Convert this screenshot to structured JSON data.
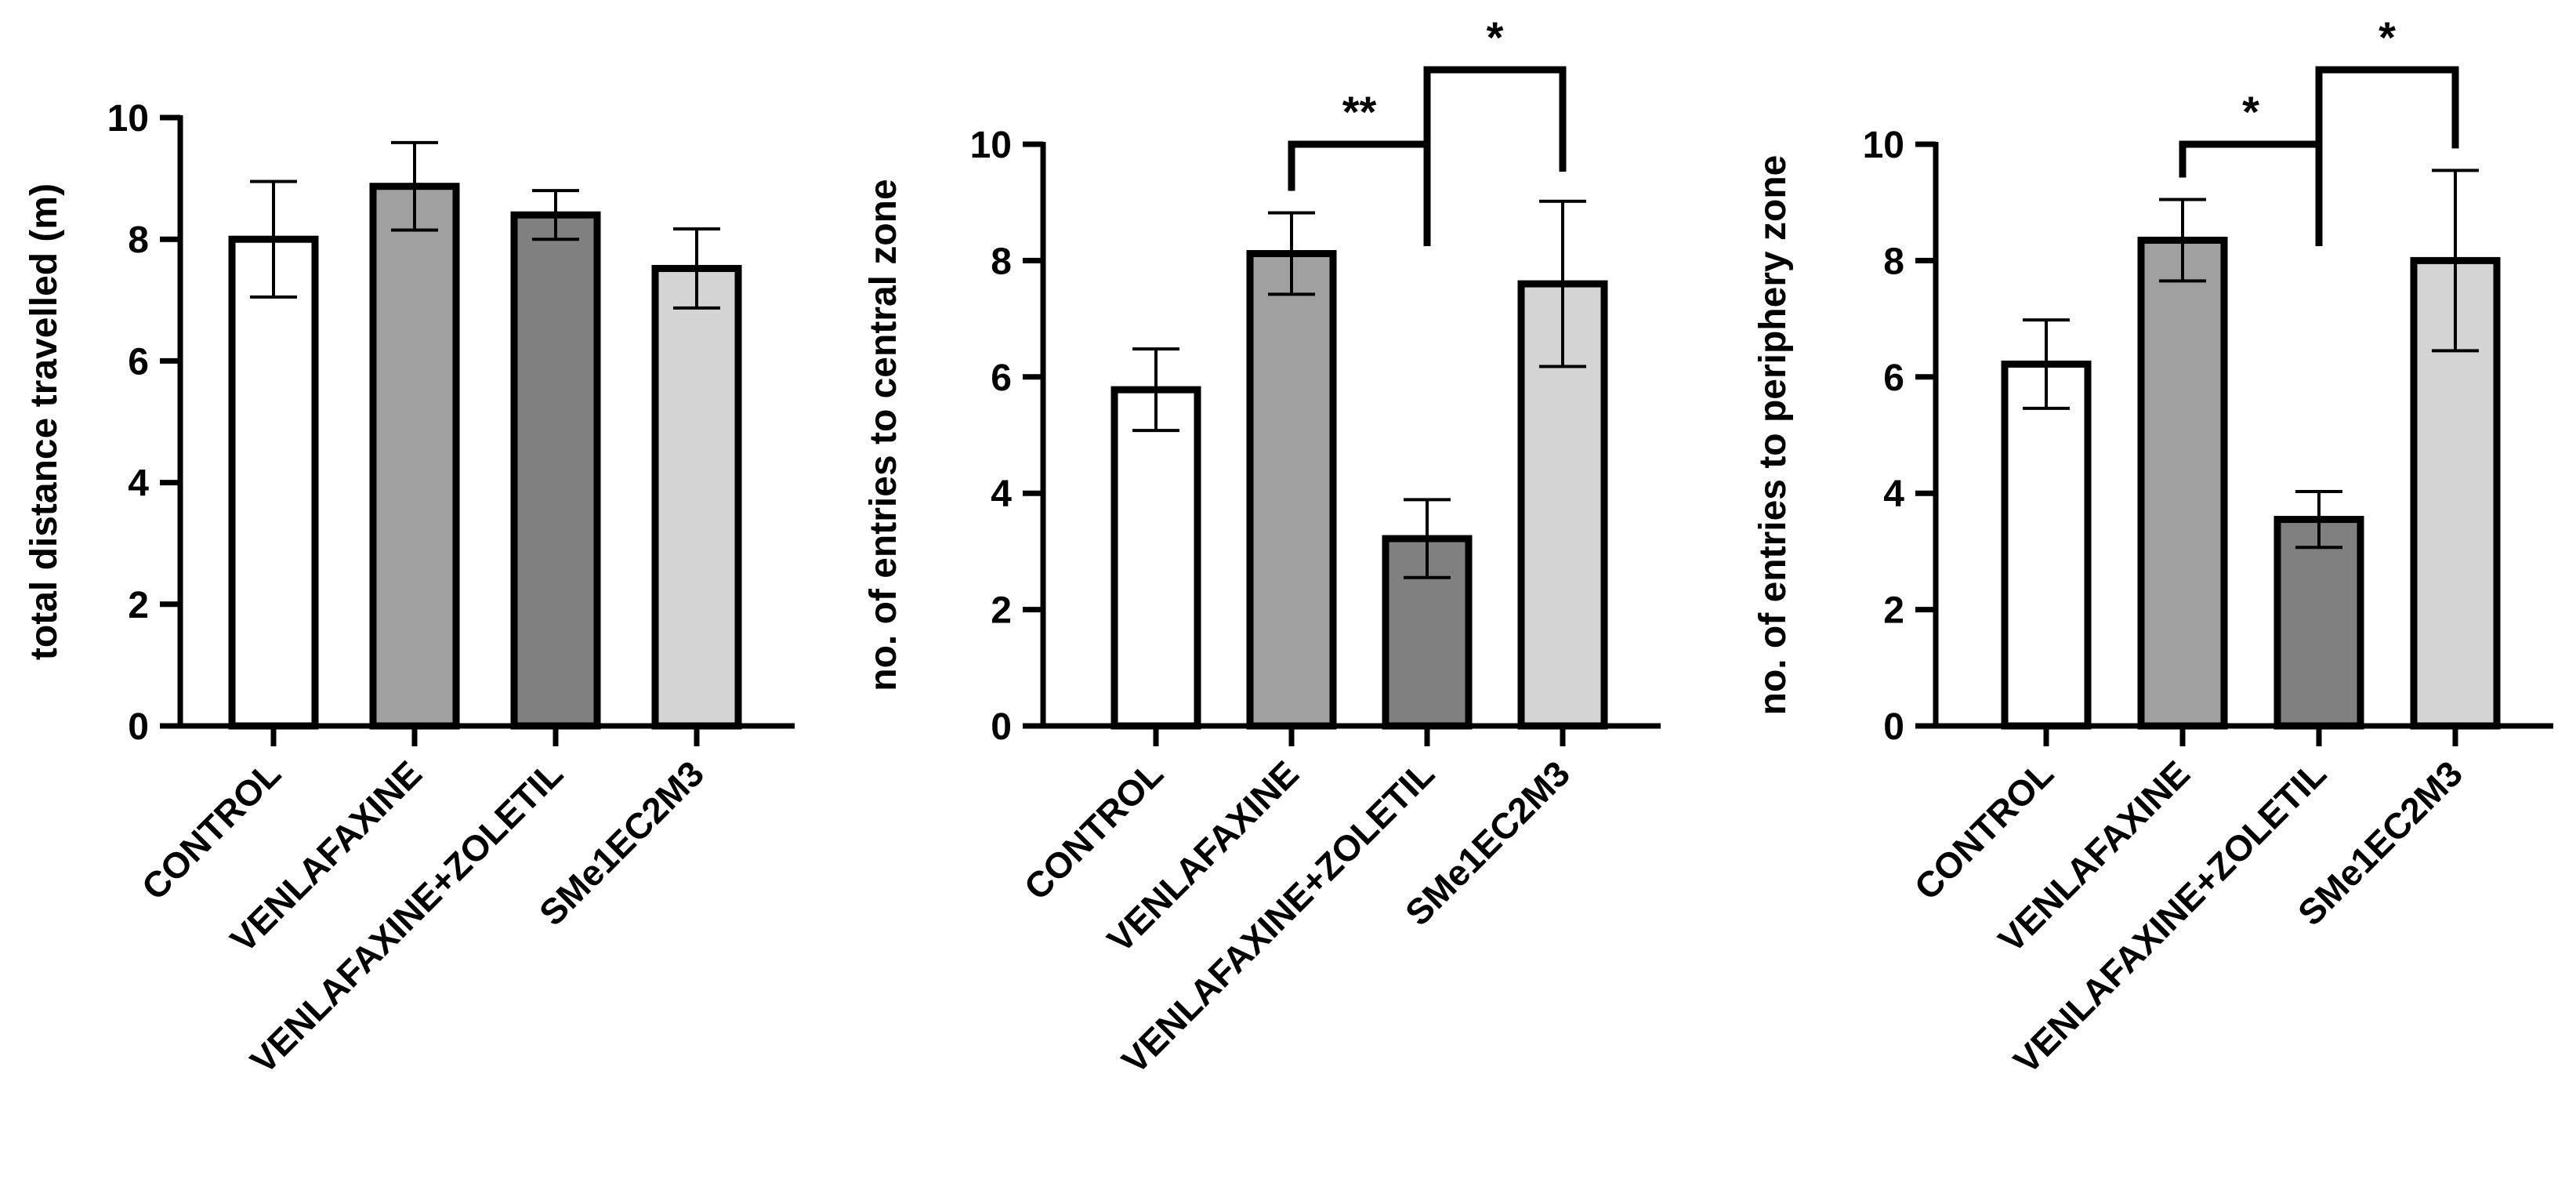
{
  "chart_data": [
    {
      "type": "bar",
      "categories": [
        "CONTROL",
        "VENLAFAXINE",
        "VENLAFAXINE+ZOLETIL",
        "SMe1EC2M3"
      ],
      "values": [
        8.0,
        8.87,
        8.4,
        7.52
      ],
      "errors": [
        0.95,
        0.72,
        0.4,
        0.65
      ],
      "ylabel": "total distance travelled (m)",
      "ylim": [
        0,
        10
      ],
      "yticks": [
        0,
        2,
        4,
        6,
        8,
        10
      ],
      "colors": [
        "#ffffff",
        "#a0a0a0",
        "#808080",
        "#d4d4d4"
      ],
      "significance": []
    },
    {
      "type": "bar",
      "categories": [
        "CONTROL",
        "VENLAFAXINE",
        "VENLAFAXINE+ZOLETIL",
        "SMe1EC2M3"
      ],
      "values": [
        5.78,
        8.12,
        3.22,
        7.6
      ],
      "errors": [
        0.7,
        0.7,
        0.67,
        1.42
      ],
      "ylabel": "no. of entries to central zone",
      "ylim": [
        0,
        10
      ],
      "yticks": [
        0,
        2,
        4,
        6,
        8,
        10
      ],
      "colors": [
        "#ffffff",
        "#a0a0a0",
        "#808080",
        "#d4d4d4"
      ],
      "significance": [
        {
          "from": 1,
          "to": 2,
          "label": "**"
        },
        {
          "from": 2,
          "to": 3,
          "label": "*"
        }
      ]
    },
    {
      "type": "bar",
      "categories": [
        "CONTROL",
        "VENLAFAXINE",
        "VENLAFAXINE+ZOLETIL",
        "SMe1EC2M3"
      ],
      "values": [
        6.22,
        8.35,
        3.55,
        8.0
      ],
      "errors": [
        0.76,
        0.7,
        0.48,
        1.55
      ],
      "ylabel": "no. of entries to periphery zone",
      "ylim": [
        0,
        10
      ],
      "yticks": [
        0,
        2,
        4,
        6,
        8,
        10
      ],
      "colors": [
        "#ffffff",
        "#a0a0a0",
        "#808080",
        "#d4d4d4"
      ],
      "significance": [
        {
          "from": 1,
          "to": 2,
          "label": "*"
        },
        {
          "from": 2,
          "to": 3,
          "label": "*"
        }
      ]
    }
  ]
}
